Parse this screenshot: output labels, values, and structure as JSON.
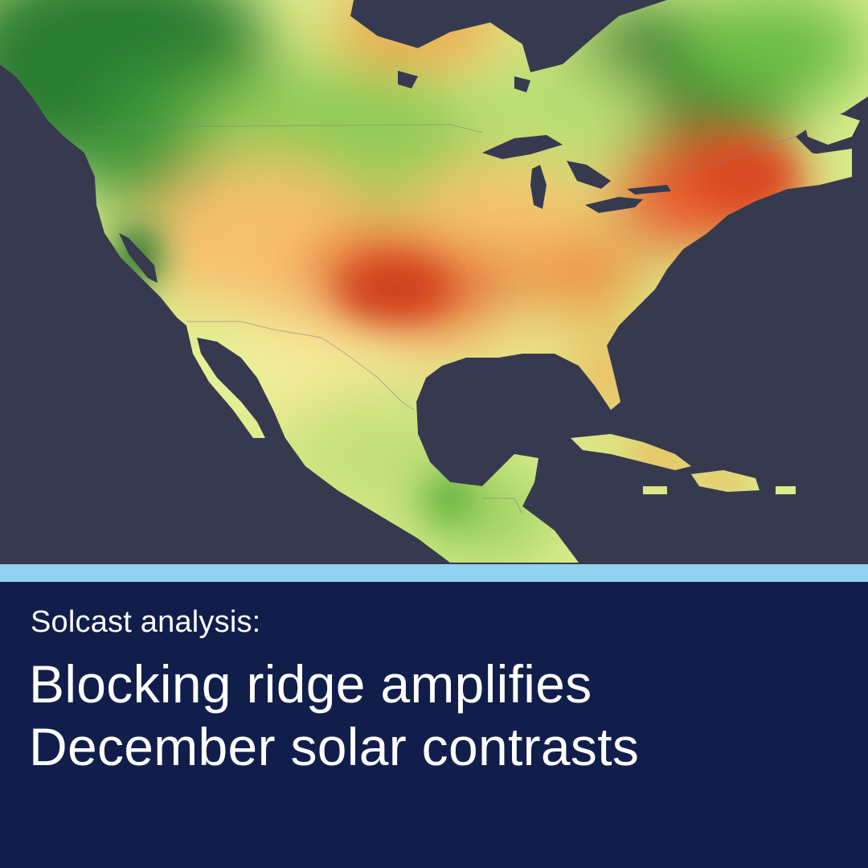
{
  "map": {
    "colors": {
      "water": "#373a4f",
      "high": "#1f6f2a",
      "mid_high": "#6cbd45",
      "mid": "#c8e67a",
      "neutral": "#f6ec95",
      "mid_low": "#f7b35a",
      "low": "#d93e1f"
    }
  },
  "caption": {
    "kicker": "Solcast analysis:",
    "headline_line1": "Blocking ridge amplifies",
    "headline_line2": "December solar contrasts"
  },
  "theme": {
    "panel_bg": "#111e4c",
    "accent": "#8fd3ee",
    "text": "#ffffff"
  }
}
